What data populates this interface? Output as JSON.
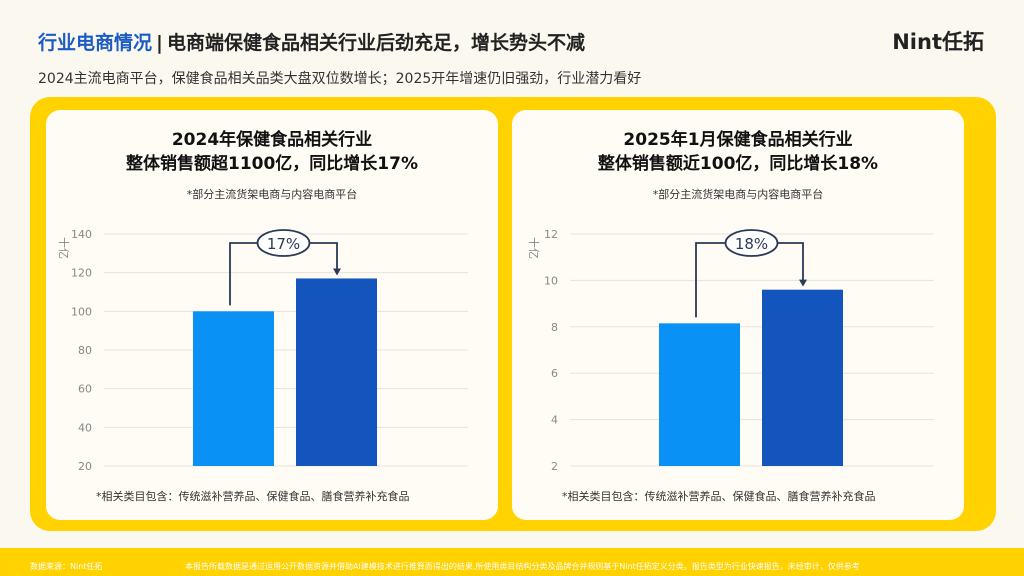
{
  "header": {
    "title_highlight": "行业电商情况",
    "separator": "|",
    "title": "电商端保健食品相关行业后劲充足，增长势头不减",
    "logo": "Nint任拓",
    "subtitle": "2024主流电商平台，保健食品相关品类大盘双位数增长；2025开年增速仍旧强劲，行业潜力看好"
  },
  "footer": {
    "source": "数据来源：Nint任拓",
    "disclaimer": "本报告所载数据是通过运用公开数据资源并借助AI建模技术进行推算而得出的结果,所使用类目结构分类及品牌合并规则基于Nint任拓定义分类。报告类型为行业快速报告，未经审计，仅供参考"
  },
  "colors": {
    "bar_prev": "#0a91f5",
    "bar_curr": "#1455bd",
    "panel": "#ffd200",
    "accent": "#1a5bc4"
  },
  "chart_data": [
    {
      "type": "bar",
      "title_line1": "2024年保健食品相关行业",
      "title_line2": "整体销售额超1100亿，同比增长17%",
      "note": "*部分主流货架电商与内容电商平台",
      "footnote": "*相关类目包含：传统滋补营养品、保健食品、膳食营养补充食品",
      "ylabel": "十亿",
      "ylim": [
        20,
        140
      ],
      "yticks": [
        20,
        40,
        60,
        80,
        100,
        120,
        140
      ],
      "values": [
        100,
        117
      ],
      "growth_label": "17%",
      "grid": true
    },
    {
      "type": "bar",
      "title_line1": "2025年1月保健食品相关行业",
      "title_line2": "整体销售额近100亿，同比增长18%",
      "note": "*部分主流货架电商与内容电商平台",
      "footnote": "*相关类目包含：传统滋补营养品、保健食品、膳食营养补充食品",
      "ylabel": "十亿",
      "ylim": [
        2,
        12
      ],
      "yticks": [
        2,
        4,
        6,
        8,
        10,
        12
      ],
      "values": [
        8.15,
        9.6
      ],
      "growth_label": "18%",
      "grid": true
    }
  ]
}
